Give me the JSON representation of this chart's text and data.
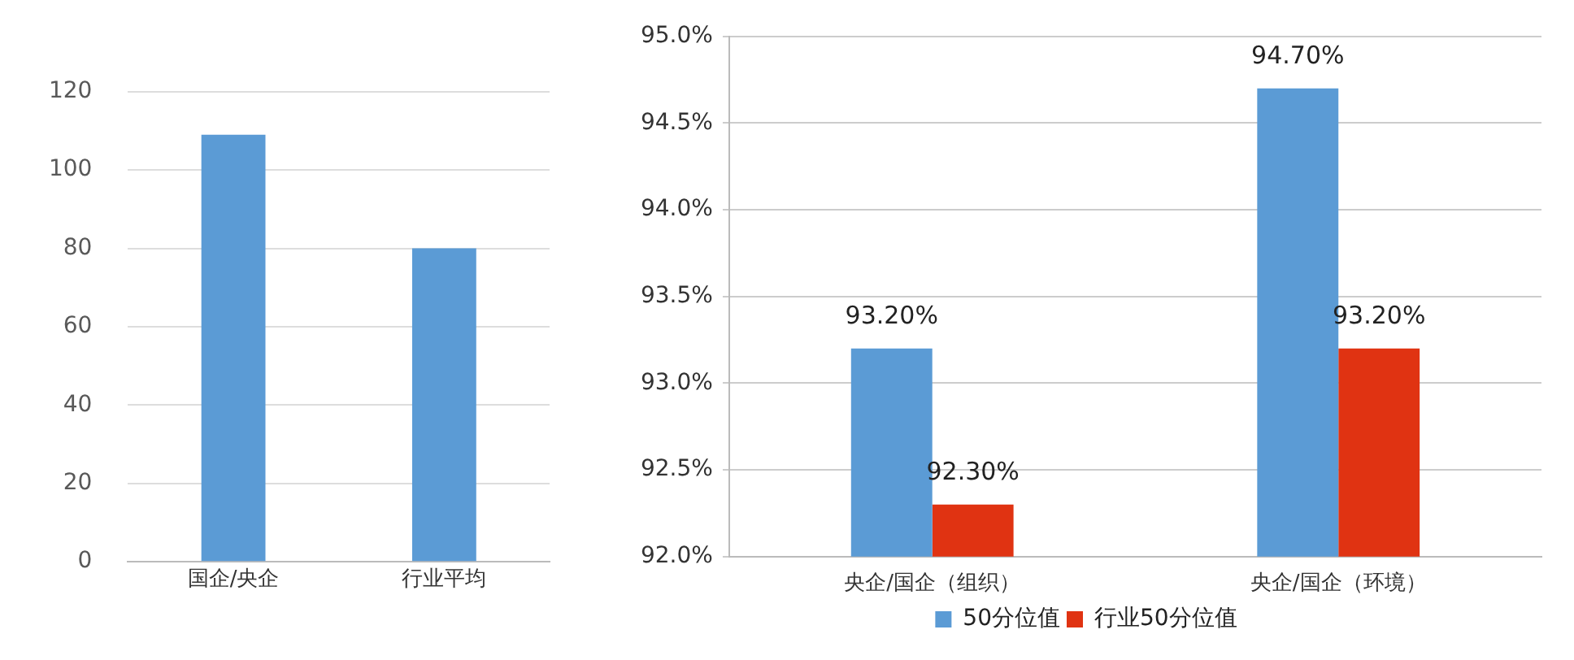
{
  "chart_data": [
    {
      "type": "bar",
      "categories": [
        "国企/央企",
        "行业平均"
      ],
      "values": [
        109,
        80
      ],
      "color": "#5b9bd5",
      "ylim": [
        0,
        120
      ],
      "yticks": [
        0,
        20,
        40,
        60,
        80,
        100,
        120
      ],
      "grid": "y"
    },
    {
      "type": "bar",
      "categories": [
        "央企/国企（组织）",
        "央企/国企（环境）"
      ],
      "series": [
        {
          "name": "50分位值",
          "color": "#5b9bd5",
          "values": [
            93.2,
            94.7
          ],
          "value_labels": [
            "93.20%",
            "94.70%"
          ]
        },
        {
          "name": "行业50分位值",
          "color": "#e03312",
          "values": [
            92.3,
            93.2
          ],
          "value_labels": [
            "92.30%",
            "93.20%"
          ]
        }
      ],
      "ylim": [
        92,
        95
      ],
      "yticks": [
        {
          "value": 92,
          "label": "92.0%"
        },
        {
          "value": 92.5,
          "label": "92.5%"
        },
        {
          "value": 93,
          "label": "93.0%"
        },
        {
          "value": 93.5,
          "label": "93.5%"
        },
        {
          "value": 94,
          "label": "94.0%"
        },
        {
          "value": 94.5,
          "label": "94.5%"
        },
        {
          "value": 95,
          "label": "95.0%"
        }
      ],
      "grid": "y",
      "legend": "bottom"
    }
  ]
}
